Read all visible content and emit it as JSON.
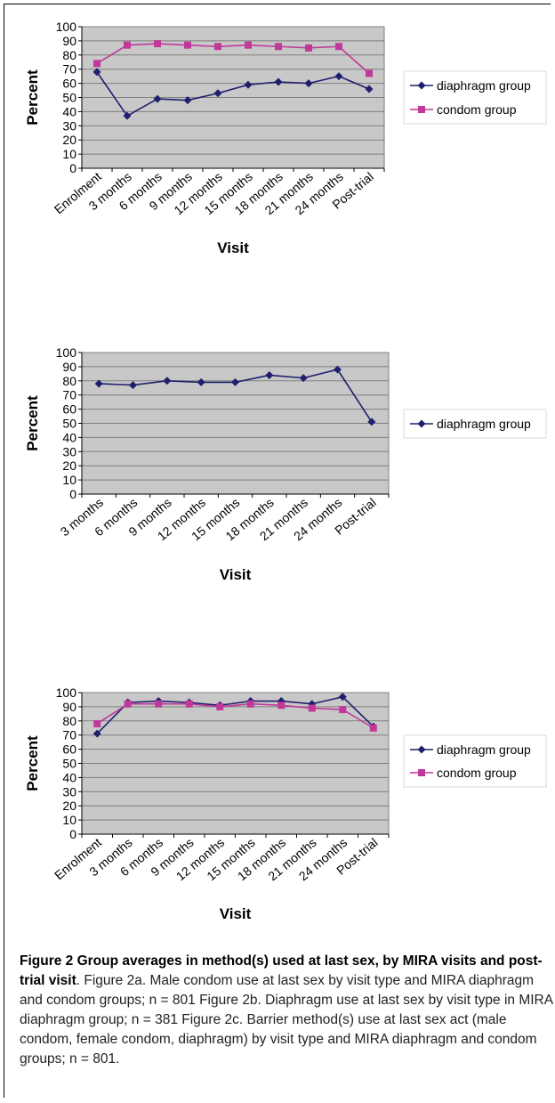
{
  "chart_data": [
    {
      "type": "line",
      "categories": [
        "Enrolment",
        "3 months",
        "6 months",
        "9 months",
        "12 months",
        "15 months",
        "18 months",
        "21 months",
        "24 months",
        "Post-trial"
      ],
      "series": [
        {
          "name": "diaphragm group",
          "values": [
            68,
            37,
            49,
            48,
            53,
            59,
            61,
            60,
            65,
            56
          ],
          "color": "#1f1f6e",
          "marker": "diamond"
        },
        {
          "name": "condom group",
          "values": [
            74,
            87,
            88,
            87,
            86,
            87,
            86,
            85,
            86,
            67
          ],
          "color": "#c0399a",
          "marker": "square"
        }
      ],
      "xlabel": "Visit",
      "ylabel": "Percent",
      "ylim": [
        0,
        100
      ],
      "yticks": [
        "0",
        "10",
        "20",
        "30",
        "40",
        "50",
        "60",
        "70",
        "80",
        "90",
        "100"
      ],
      "grid": true,
      "legend": "right"
    },
    {
      "type": "line",
      "categories": [
        "3 months",
        "6 months",
        "9 months",
        "12 months",
        "15 months",
        "18 months",
        "21 months",
        "24 months",
        "Post-trial"
      ],
      "series": [
        {
          "name": "diaphragm group",
          "values": [
            78,
            77,
            80,
            79,
            79,
            84,
            82,
            88,
            51
          ],
          "color": "#1f1f6e",
          "marker": "diamond"
        }
      ],
      "xlabel": "Visit",
      "ylabel": "Percent",
      "ylim": [
        0,
        100
      ],
      "yticks": [
        "0",
        "10",
        "20",
        "30",
        "40",
        "50",
        "60",
        "70",
        "80",
        "90",
        "100"
      ],
      "grid": true,
      "legend": "right"
    },
    {
      "type": "line",
      "categories": [
        "Enrolment",
        "3 months",
        "6 months",
        "9 months",
        "12 months",
        "15 months",
        "18 months",
        "21 months",
        "24 months",
        "Post-trial"
      ],
      "series": [
        {
          "name": "diaphragm group",
          "values": [
            71,
            93,
            94,
            93,
            91,
            94,
            94,
            92,
            97,
            76
          ],
          "color": "#1f1f6e",
          "marker": "diamond"
        },
        {
          "name": "condom group",
          "values": [
            78,
            92,
            92,
            92,
            90,
            92,
            91,
            89,
            88,
            75
          ],
          "color": "#c0399a",
          "marker": "square"
        }
      ],
      "xlabel": "Visit",
      "ylabel": "Percent",
      "ylim": [
        0,
        100
      ],
      "yticks": [
        "0",
        "10",
        "20",
        "30",
        "40",
        "50",
        "60",
        "70",
        "80",
        "90",
        "100"
      ],
      "grid": true,
      "legend": "right"
    }
  ],
  "caption": {
    "title": "Figure 2 Group averages in method(s) used at last sex, by MIRA visits and post-trial visit",
    "text": ". Figure 2a. Male condom use at last sex by visit type and MIRA diaphragm and condom groups; n = 801 Figure 2b. Diaphragm use at last sex by visit type in MIRA diaphragm group; n = 381 Figure 2c. Barrier method(s) use at last sex act (male condom, female condom, diaphragm) by visit type and MIRA diaphragm and condom groups; n = 801."
  }
}
